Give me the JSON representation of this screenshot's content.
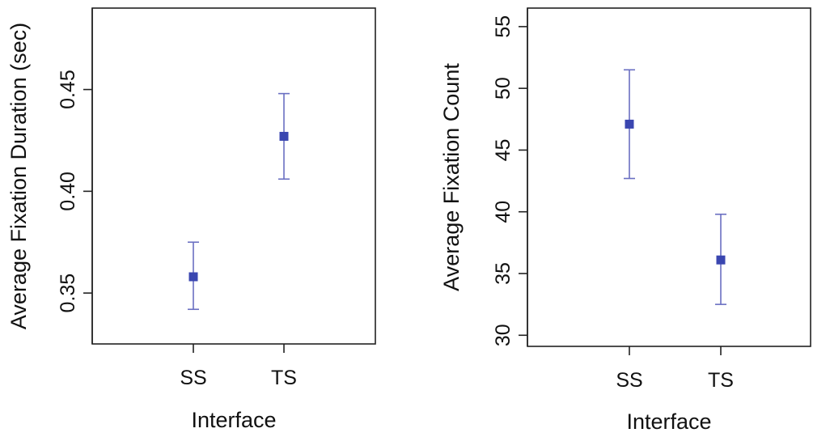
{
  "chart_data": [
    {
      "type": "scatter",
      "title": "",
      "xlabel": "Interface",
      "ylabel": "Average Fixation Duration (sec)",
      "categories": [
        "SS",
        "TS"
      ],
      "ylim": [
        0.325,
        0.49
      ],
      "yticks": [
        "0.35",
        "0.40",
        "0.45"
      ],
      "grid": false,
      "legend": "none",
      "series": [
        {
          "values": [
            0.358,
            0.427
          ],
          "lower": [
            0.342,
            0.406
          ],
          "upper": [
            0.375,
            0.448
          ]
        }
      ],
      "color": "#3a46b0",
      "error_color": "#6a6fc2"
    },
    {
      "type": "scatter",
      "title": "",
      "xlabel": "Interface",
      "ylabel": "Average Fixation Count",
      "categories": [
        "SS",
        "TS"
      ],
      "ylim": [
        29.1,
        56.5
      ],
      "yticks": [
        "30",
        "35",
        "40",
        "45",
        "50",
        "55"
      ],
      "grid": false,
      "legend": "none",
      "series": [
        {
          "values": [
            47.1,
            36.1
          ],
          "lower": [
            42.7,
            32.5
          ],
          "upper": [
            51.5,
            39.8
          ]
        }
      ],
      "color": "#3a46b0",
      "error_color": "#6a6fc2"
    }
  ]
}
